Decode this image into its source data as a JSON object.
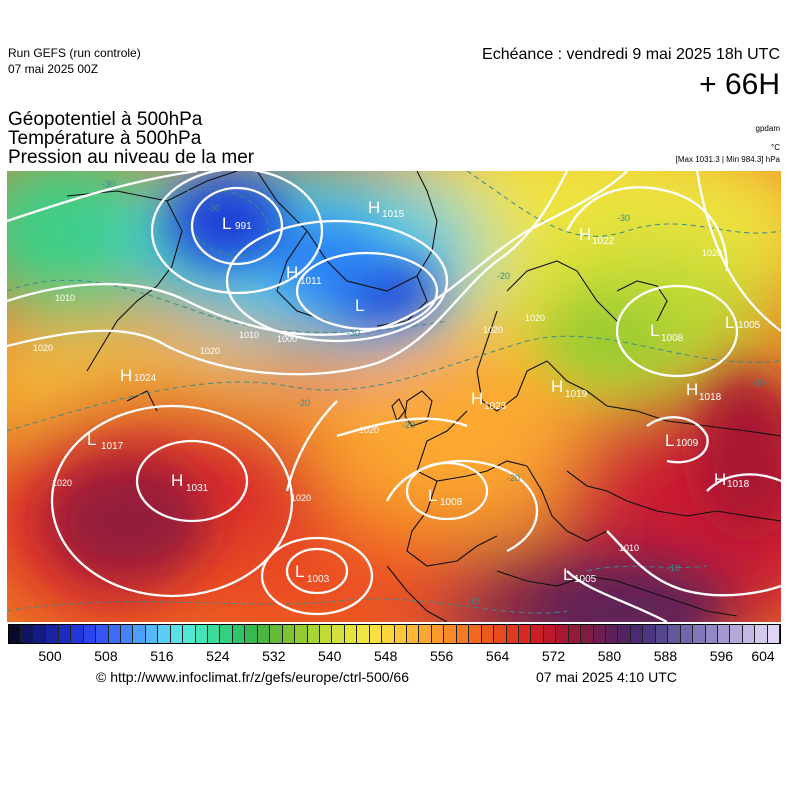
{
  "header": {
    "run_name": "Run GEFS (run controle)",
    "run_date": "07 mai 2025 00Z",
    "valid_time": "Echéance : vendredi 9 mai 2025 18h UTC",
    "lead_time": "+ 66H"
  },
  "titles": [
    "Géopotentiel à 500hPa",
    "Température à 500hPa",
    "Pression au niveau de la mer"
  ],
  "units": {
    "geopotential": "gpdam",
    "temperature": "°C",
    "pressure": "[Max 1031.3 | Min 984.3] hPa"
  },
  "map": {
    "pressure_centers": [
      {
        "type": "H",
        "value": "1015"
      },
      {
        "type": "H",
        "value": "1022"
      },
      {
        "type": "H",
        "value": "1011"
      },
      {
        "type": "L",
        "value": ""
      },
      {
        "type": "L",
        "value": "991"
      },
      {
        "type": "L",
        "value": "1008"
      },
      {
        "type": "L",
        "value": "1005"
      },
      {
        "type": "H",
        "value": "1024"
      },
      {
        "type": "H",
        "value": "1023"
      },
      {
        "type": "H",
        "value": "1019"
      },
      {
        "type": "H",
        "value": "1018"
      },
      {
        "type": "L",
        "value": "1017"
      },
      {
        "type": "H",
        "value": "1031"
      },
      {
        "type": "L",
        "value": "1008"
      },
      {
        "type": "L",
        "value": "1009"
      },
      {
        "type": "H",
        "value": "1018"
      },
      {
        "type": "L",
        "value": "1003"
      },
      {
        "type": "L",
        "value": "1005"
      }
    ],
    "isobar_labels": [
      "1010",
      "1020",
      "1020",
      "1010",
      "1000",
      "1020",
      "1020",
      "1020",
      "1020",
      "1020",
      "1020",
      "1010"
    ],
    "isotherm_labels": [
      "-30",
      "-30",
      "-20",
      "-30",
      "-20",
      "-20",
      "-20",
      "-10",
      "-10",
      "-20",
      "-30"
    ]
  },
  "colorbar": {
    "colors": [
      "#0a0a2a",
      "#101560",
      "#141c80",
      "#1824a0",
      "#1c2cc0",
      "#2436d8",
      "#2c44ec",
      "#3456f6",
      "#3c6cfa",
      "#4484fc",
      "#4ca0fc",
      "#54b8fa",
      "#5ccef4",
      "#5ce0e8",
      "#50e8d4",
      "#44e4b8",
      "#3cdc9c",
      "#34d080",
      "#30c468",
      "#38b850",
      "#4cb440",
      "#64bc38",
      "#7cc430",
      "#94cc30",
      "#aad434",
      "#c0da38",
      "#d4e03c",
      "#e4e43c",
      "#f0e440",
      "#f8e040",
      "#fcd43c",
      "#fcc638",
      "#fcb834",
      "#fca830",
      "#fc9a2c",
      "#fa8a28",
      "#f67a24",
      "#f26a22",
      "#ec5a20",
      "#e64a1e",
      "#e03a1e",
      "#d82a22",
      "#cc1e26",
      "#bc1a2c",
      "#a81832",
      "#941a3a",
      "#801c44",
      "#6e1e4e",
      "#5e2058",
      "#522464",
      "#4a2a72",
      "#4c3680",
      "#56468e",
      "#62589c",
      "#7068aa",
      "#8078b8",
      "#9288c4",
      "#a498d0",
      "#b4a8da",
      "#c4b8e2",
      "#d4c8ec",
      "#e0d4f2"
    ],
    "ticks": [
      "500",
      "508",
      "516",
      "524",
      "532",
      "540",
      "548",
      "556",
      "564",
      "572",
      "580",
      "588",
      "596",
      "604"
    ]
  },
  "footer": {
    "credit": "© http://www.infoclimat.fr/z/gefs/europe/ctrl-500/66",
    "issued": "07 mai 2025  4:10 UTC"
  }
}
